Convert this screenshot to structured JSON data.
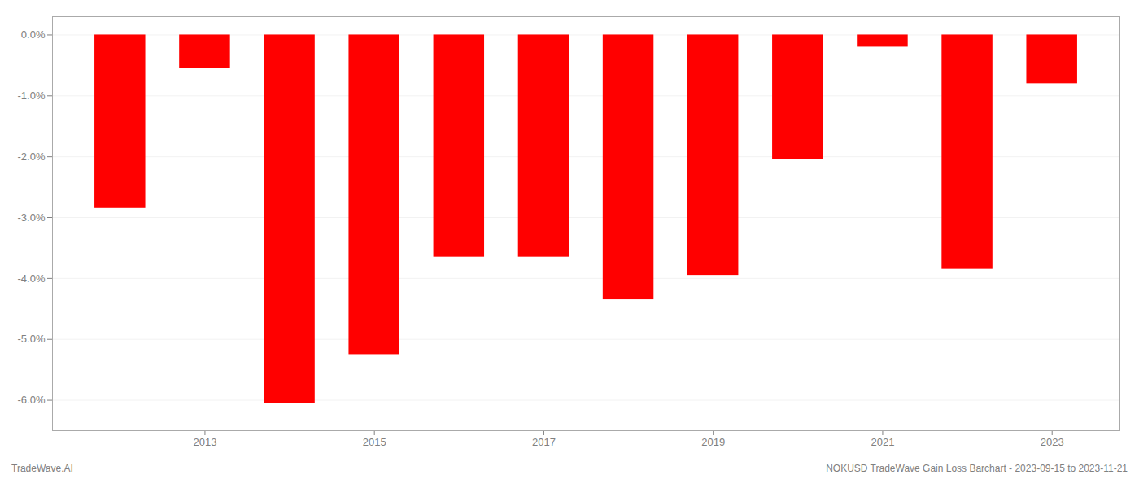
{
  "chart_data": {
    "type": "bar",
    "x": [
      2012,
      2013,
      2014,
      2015,
      2016,
      2017,
      2018,
      2019,
      2020,
      2021,
      2022,
      2023
    ],
    "values": [
      -0.0285,
      -0.0055,
      -0.0605,
      -0.0525,
      -0.0365,
      -0.0365,
      -0.0435,
      -0.0395,
      -0.0205,
      -0.002,
      -0.0385,
      -0.008
    ],
    "color": "#ff0000",
    "xlim": [
      2011.2,
      2023.8
    ],
    "xticks": [
      2013,
      2015,
      2017,
      2019,
      2021,
      2023
    ],
    "ylim": [
      -0.065,
      0.003
    ],
    "yticks": [
      {
        "value": 0.0,
        "label": "0.0%"
      },
      {
        "value": -0.01,
        "label": "-1.0%"
      },
      {
        "value": -0.02,
        "label": "-2.0%"
      },
      {
        "value": -0.03,
        "label": "-3.0%"
      },
      {
        "value": -0.04,
        "label": "-4.0%"
      },
      {
        "value": -0.05,
        "label": "-5.0%"
      },
      {
        "value": -0.06,
        "label": "-6.0%"
      }
    ],
    "grid": true,
    "annotations": [
      "TradeWave.AI",
      "NOKUSD TradeWave Gain Loss Barchart - 2023-09-15 to 2023-11-21"
    ]
  }
}
